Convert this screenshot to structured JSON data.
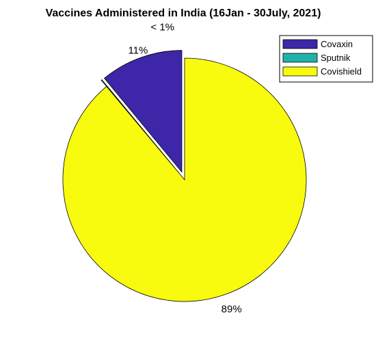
{
  "chart_data": {
    "type": "pie",
    "title": "Vaccines Administered in India (16Jan - 30July, 2021)",
    "slices": [
      {
        "name": "Covaxin",
        "value": 11,
        "label": "11%",
        "color": "#3e26a8",
        "exploded": true
      },
      {
        "name": "Sputnik",
        "value": 0.1,
        "label": "< 1%",
        "color": "#20b2aa",
        "exploded": true
      },
      {
        "name": "Covishield",
        "value": 89,
        "label": "89%",
        "color": "#f9fb0e",
        "exploded": false
      }
    ],
    "legend": {
      "placement": "top-right",
      "entries": [
        "Covaxin",
        "Sputnik",
        "Covishield"
      ]
    }
  }
}
